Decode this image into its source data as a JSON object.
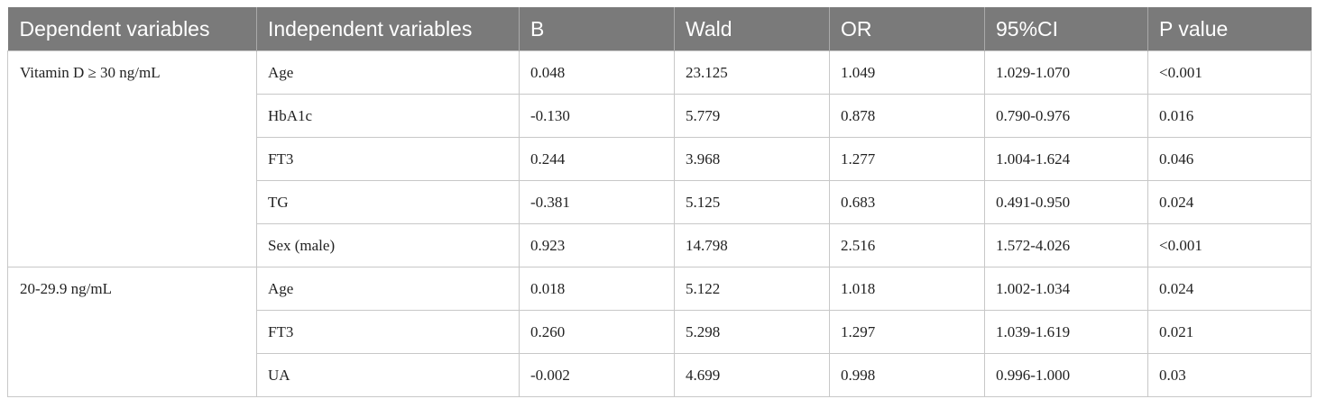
{
  "table": {
    "headers": [
      "Dependent variables",
      "Independent variables",
      "B",
      "Wald",
      "OR",
      "95%CI",
      "P value"
    ],
    "groups": [
      {
        "dependent": "Vitamin D ≥ 30 ng/mL",
        "rows": [
          [
            "Age",
            "0.048",
            "23.125",
            "1.049",
            "1.029-1.070",
            "<0.001"
          ],
          [
            "HbA1c",
            "-0.130",
            "5.779",
            "0.878",
            "0.790-0.976",
            "0.016"
          ],
          [
            "FT3",
            "0.244",
            "3.968",
            "1.277",
            "1.004-1.624",
            "0.046"
          ],
          [
            "TG",
            "-0.381",
            "5.125",
            "0.683",
            "0.491-0.950",
            "0.024"
          ],
          [
            "Sex (male)",
            "0.923",
            "14.798",
            "2.516",
            "1.572-4.026",
            "<0.001"
          ]
        ]
      },
      {
        "dependent": "20-29.9 ng/mL",
        "rows": [
          [
            "Age",
            "0.018",
            "5.122",
            "1.018",
            "1.002-1.034",
            "0.024"
          ],
          [
            "FT3",
            "0.260",
            "5.298",
            "1.297",
            "1.039-1.619",
            "0.021"
          ],
          [
            "UA",
            "-0.002",
            "4.699",
            "0.998",
            "0.996-1.000",
            "0.03"
          ]
        ]
      }
    ]
  }
}
